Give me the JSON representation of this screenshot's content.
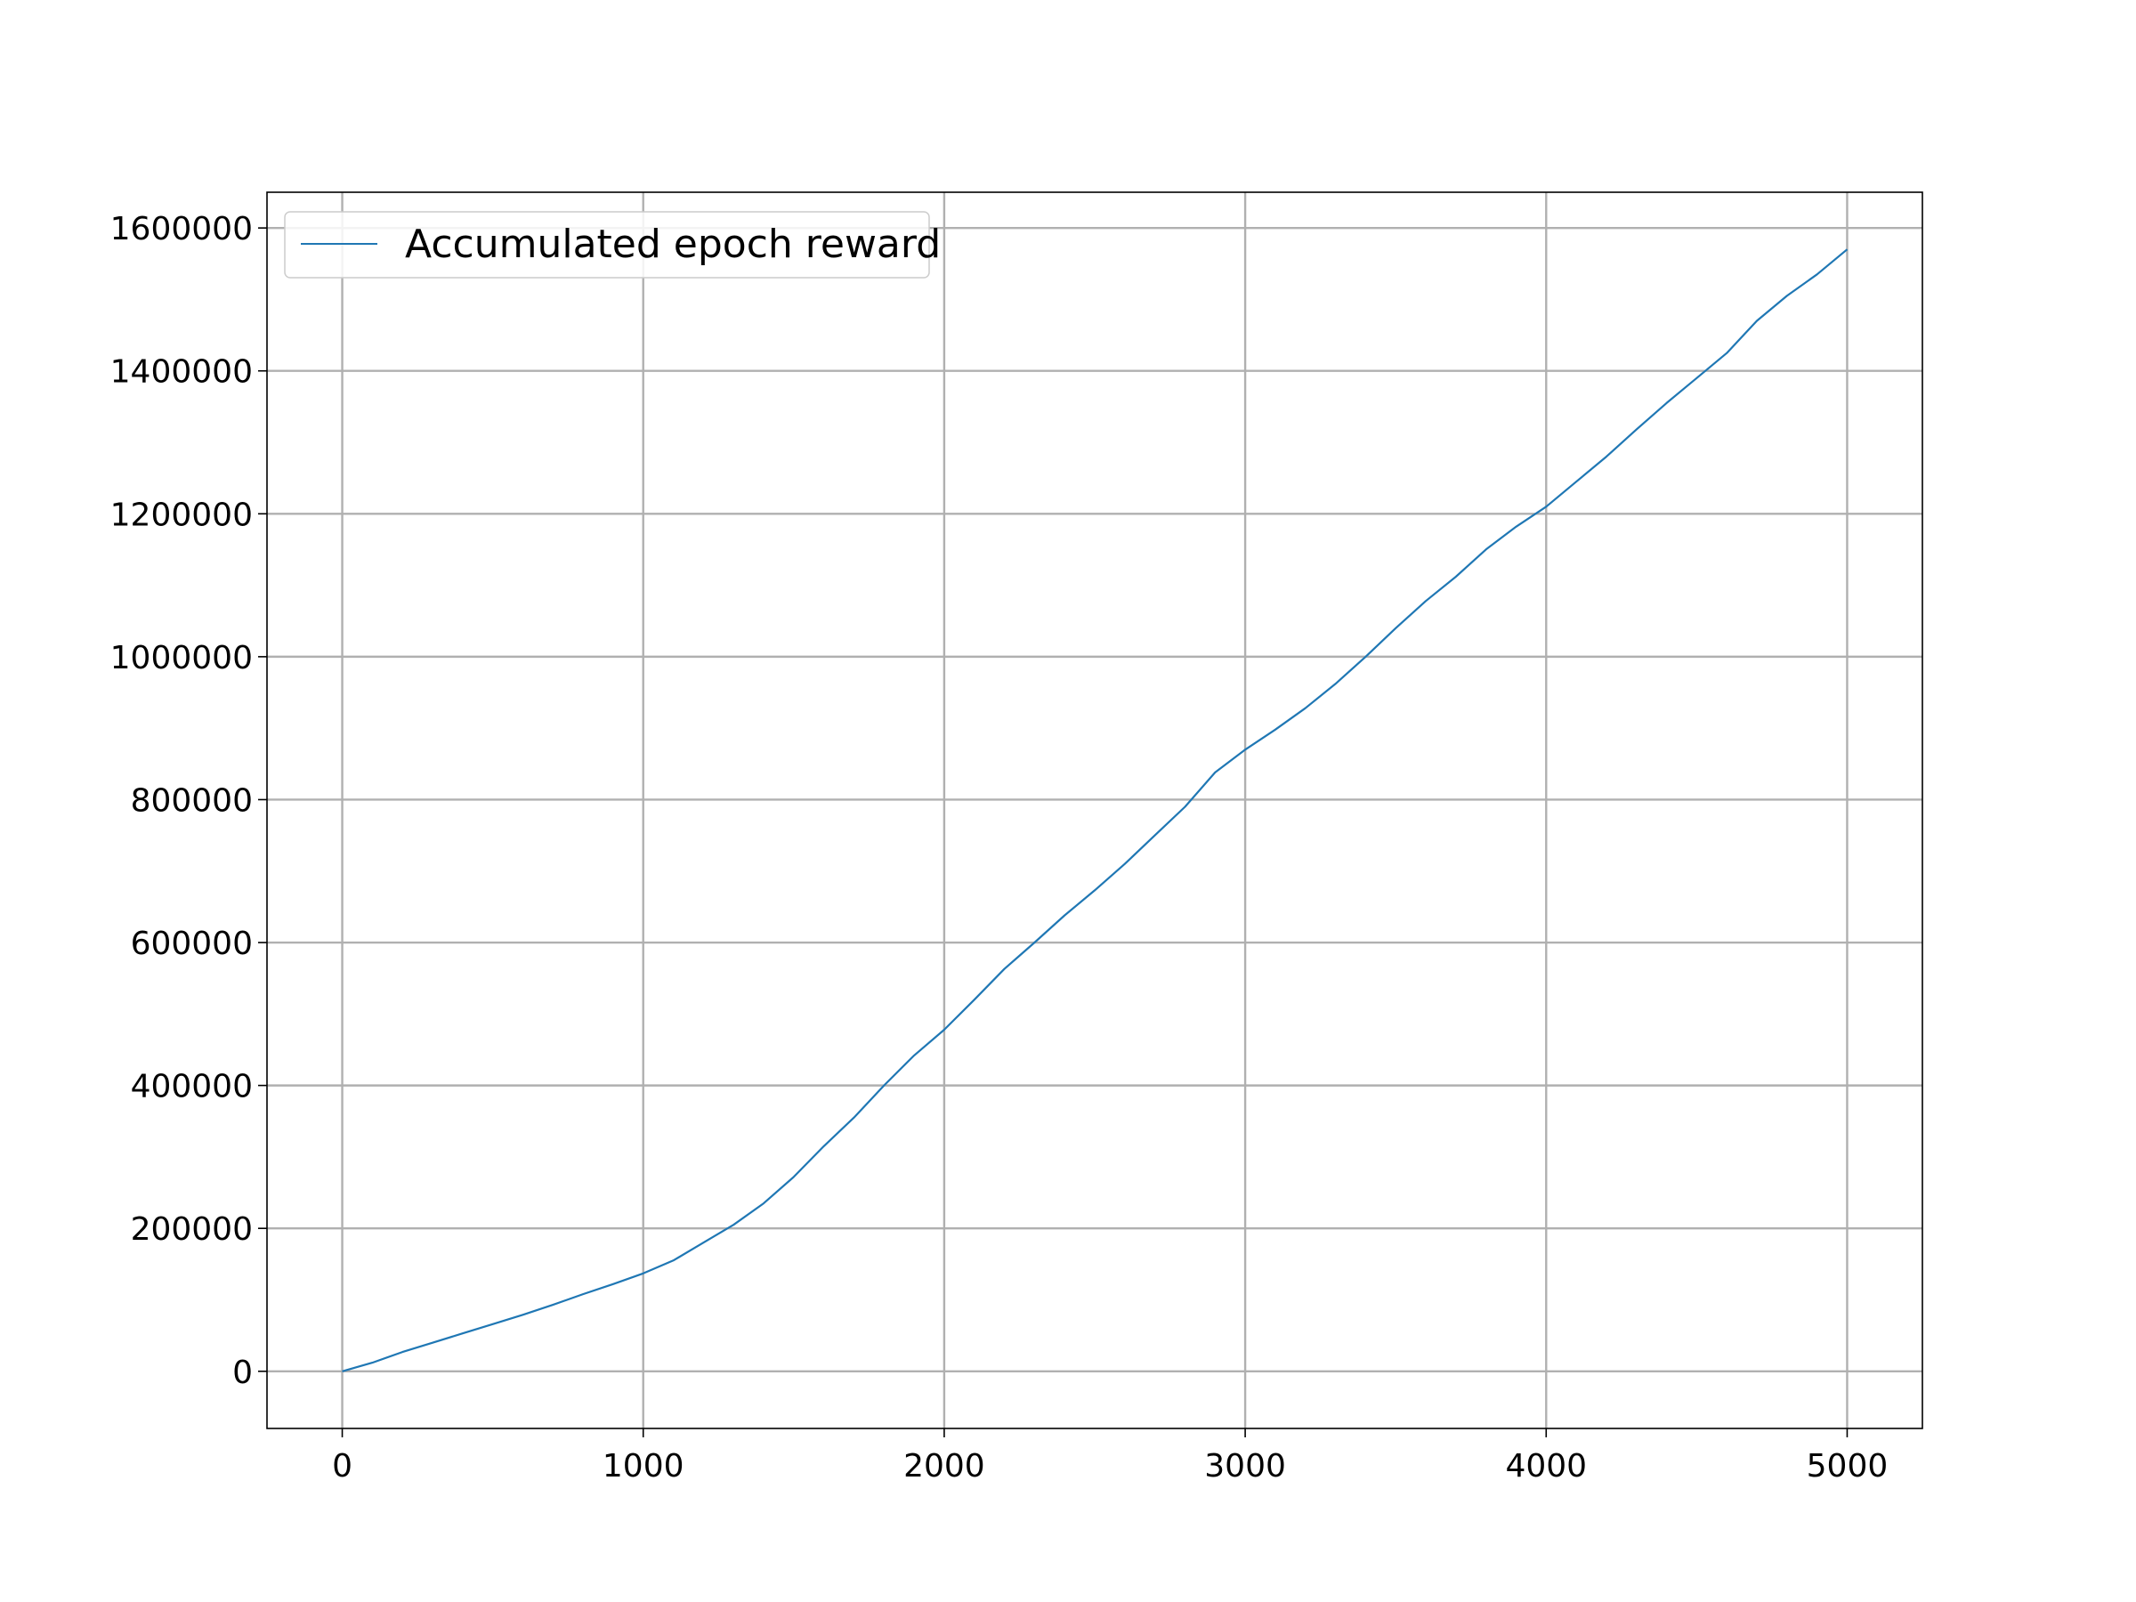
{
  "chart_data": {
    "type": "line",
    "title": "",
    "xlabel": "",
    "ylabel": "",
    "xlim": [
      -250,
      5250
    ],
    "ylim": [
      -80000,
      1650000
    ],
    "xticks": [
      0,
      1000,
      2000,
      3000,
      4000,
      5000
    ],
    "yticks": [
      0,
      200000,
      400000,
      600000,
      800000,
      1000000,
      1200000,
      1400000,
      1600000
    ],
    "xtick_labels": [
      "0",
      "1000",
      "2000",
      "3000",
      "4000",
      "5000"
    ],
    "ytick_labels": [
      "0",
      "200000",
      "400000",
      "600000",
      "800000",
      "1000000",
      "1200000",
      "1400000",
      "1600000"
    ],
    "grid": true,
    "legend_position": "top-left",
    "series": [
      {
        "name": "Accumulated epoch reward",
        "color": "#1f77b4",
        "x": [
          0,
          100,
          200,
          300,
          400,
          500,
          600,
          700,
          800,
          900,
          1000,
          1100,
          1200,
          1300,
          1400,
          1500,
          1600,
          1700,
          1800,
          1900,
          2000,
          2100,
          2200,
          2300,
          2400,
          2500,
          2600,
          2700,
          2800,
          2900,
          3000,
          3100,
          3200,
          3300,
          3400,
          3500,
          3600,
          3700,
          3800,
          3900,
          4000,
          4100,
          4200,
          4300,
          4400,
          4500,
          4600,
          4700,
          4800,
          4900,
          5000
        ],
        "y": [
          0,
          12000,
          27000,
          40000,
          53000,
          66000,
          79000,
          93000,
          108000,
          122000,
          137000,
          155000,
          180000,
          205000,
          235000,
          272000,
          315000,
          355000,
          400000,
          442000,
          478000,
          520000,
          563000,
          600000,
          638000,
          673000,
          710000,
          750000,
          790000,
          838000,
          870000,
          898000,
          928000,
          962000,
          1000000,
          1040000,
          1078000,
          1112000,
          1150000,
          1182000,
          1210000,
          1245000,
          1280000,
          1318000,
          1355000,
          1390000,
          1425000,
          1470000,
          1505000,
          1535000,
          1570000
        ]
      }
    ]
  }
}
